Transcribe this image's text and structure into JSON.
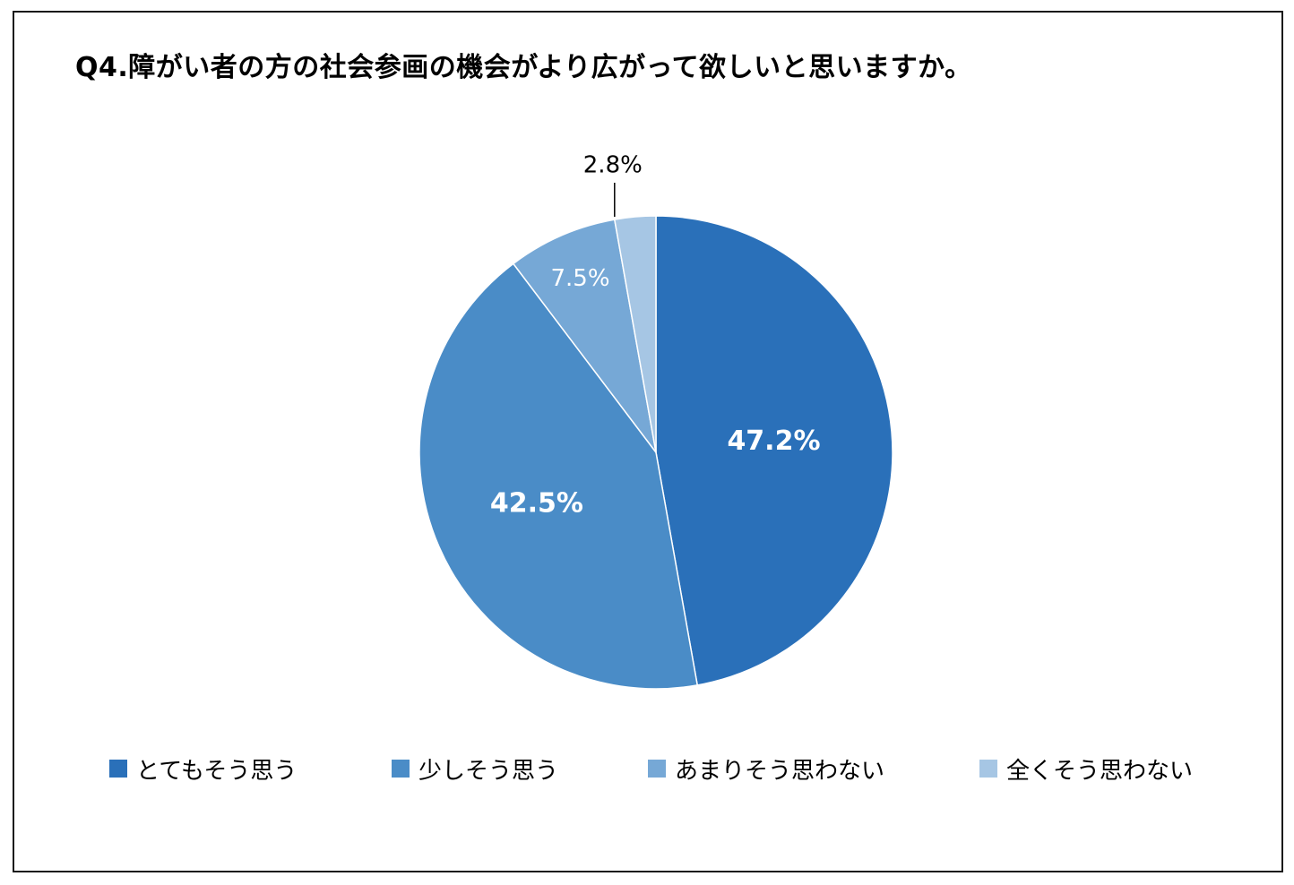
{
  "chart_data": {
    "type": "pie",
    "title": "Q4.障がい者の方の社会参画の機会がより広がって欲しいと思いますか。",
    "categories": [
      "とてもそう思う",
      "少しそう思う",
      "あまりそう思わない",
      "全くそう思わない"
    ],
    "values": [
      47.2,
      42.5,
      7.5,
      2.8
    ],
    "labels": [
      "47.2%",
      "42.5%",
      "7.5%",
      "2.8%"
    ],
    "colors": [
      "#2a70b9",
      "#4a8cc7",
      "#76a8d6",
      "#a6c6e4"
    ],
    "start_angle_deg": 0,
    "direction": "clockwise",
    "legend_position": "bottom"
  }
}
